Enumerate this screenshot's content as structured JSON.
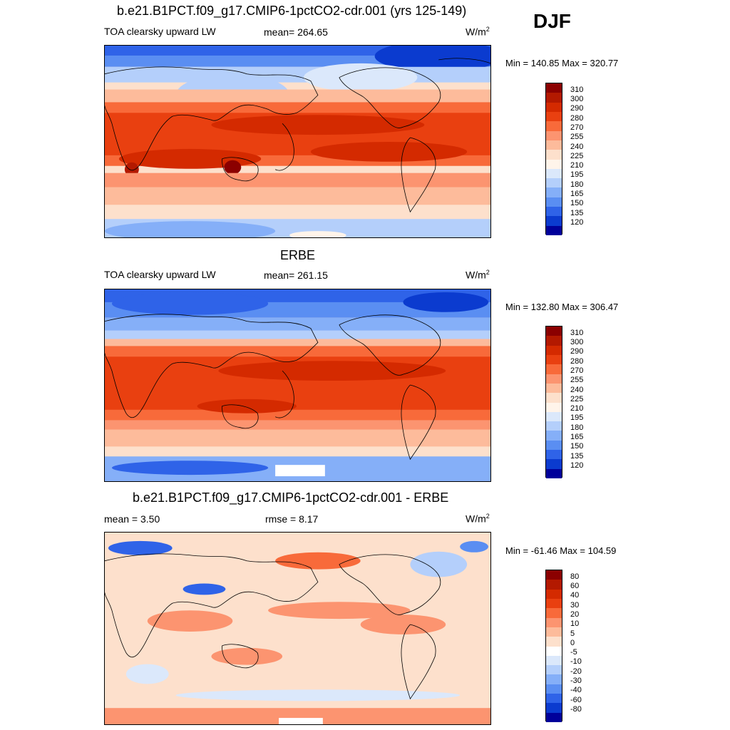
{
  "season": "DJF",
  "panel1": {
    "title": "b.e21.B1PCT.f09_g17.CMIP6-1pctCO2-cdr.001 (yrs 125-149)",
    "left_label": "TOA clearsky upward LW",
    "center_label": "mean= 264.65",
    "units": "W/m",
    "units_sup": "2",
    "minmax": "Min = 140.85 Max = 320.77"
  },
  "panel2": {
    "title": "ERBE",
    "left_label": "TOA clearsky upward LW",
    "center_label": "mean= 261.15",
    "units": "W/m",
    "units_sup": "2",
    "minmax": "Min = 132.80 Max = 306.47"
  },
  "panel3": {
    "title": "b.e21.B1PCT.f09_g17.CMIP6-1pctCO2-cdr.001 - ERBE",
    "left_label": "mean =   3.50",
    "center_label": "rmse =   8.17",
    "units": "W/m",
    "units_sup": "2",
    "minmax": "Min = -61.46 Max = 104.59"
  },
  "colorbar_abs": {
    "labels": [
      "310",
      "300",
      "290",
      "280",
      "270",
      "255",
      "240",
      "225",
      "210",
      "195",
      "180",
      "165",
      "150",
      "135",
      "120"
    ],
    "colors": [
      "#8b0000",
      "#b31900",
      "#d42a00",
      "#e94010",
      "#f86a3a",
      "#fc9470",
      "#fdbb9b",
      "#fde0cc",
      "#fff4ea",
      "#dbe8fb",
      "#b4cffb",
      "#85aff8",
      "#5a8ef2",
      "#2f63e8",
      "#0b3bcf",
      "#00009a"
    ]
  },
  "colorbar_diff": {
    "labels": [
      "80",
      "60",
      "40",
      "30",
      "20",
      "10",
      "5",
      "0",
      "-5",
      "-10",
      "-20",
      "-30",
      "-40",
      "-60",
      "-80"
    ],
    "colors": [
      "#8b0000",
      "#b31900",
      "#d42a00",
      "#e94010",
      "#f86a3a",
      "#fc9470",
      "#fdbb9b",
      "#fde0cc",
      "#ffffff",
      "#dbe8fb",
      "#b4cffb",
      "#85aff8",
      "#5a8ef2",
      "#2f63e8",
      "#0b3bcf",
      "#00009a"
    ]
  }
}
